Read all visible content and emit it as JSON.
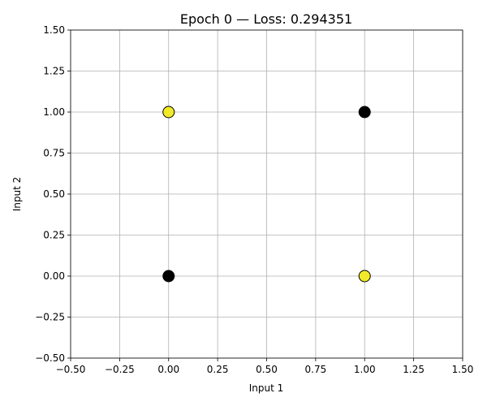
{
  "chart_data": {
    "type": "scatter",
    "title": "Epoch 0 — Loss: 0.294351",
    "xlabel": "Input 1",
    "ylabel": "Input 2",
    "xlim": [
      -0.5,
      1.5
    ],
    "ylim": [
      -0.5,
      1.5
    ],
    "x_ticks": [
      -0.5,
      -0.25,
      0.0,
      0.25,
      0.5,
      0.75,
      1.0,
      1.25,
      1.5
    ],
    "y_ticks": [
      -0.5,
      -0.25,
      0.0,
      0.25,
      0.5,
      0.75,
      1.0,
      1.25,
      1.5
    ],
    "x_tick_labels": [
      "−0.50",
      "−0.25",
      "0.00",
      "0.25",
      "0.50",
      "0.75",
      "1.00",
      "1.25",
      "1.50"
    ],
    "y_tick_labels": [
      "−0.50",
      "−0.25",
      "0.00",
      "0.25",
      "0.50",
      "0.75",
      "1.00",
      "1.25",
      "1.50"
    ],
    "grid": true,
    "points": [
      {
        "x": 0,
        "y": 0,
        "color": "#000000"
      },
      {
        "x": 0,
        "y": 1,
        "color": "#f2ea28"
      },
      {
        "x": 1,
        "y": 0,
        "color": "#f2ea28"
      },
      {
        "x": 1,
        "y": 1,
        "color": "#000000"
      }
    ]
  }
}
